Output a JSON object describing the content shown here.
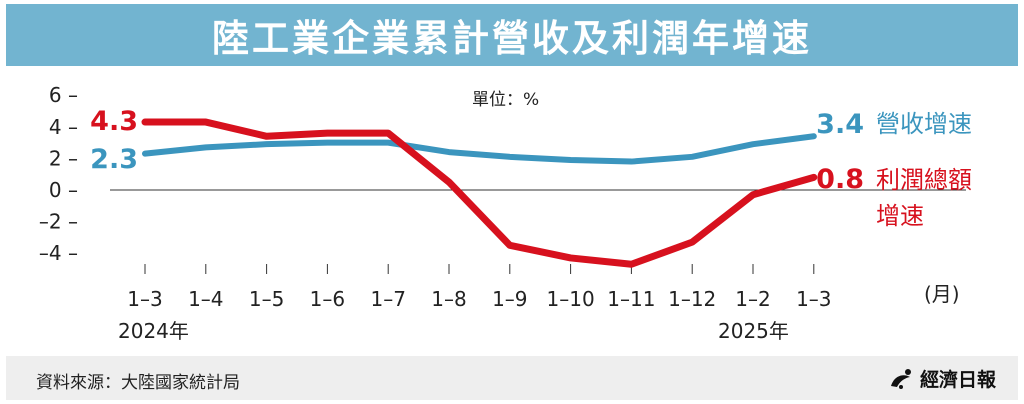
{
  "title": "陸工業企業累計營收及利潤年增速",
  "unit_label": "單位：%",
  "month_suffix": "(月)",
  "year_labels": [
    "2024年",
    "2025年"
  ],
  "source": "資料來源：大陸國家統計局",
  "brand": "經濟日報",
  "colors": {
    "title_bar": "#72b4d0",
    "revenue": "#3b95be",
    "profit": "#d7111e",
    "footer_bg": "#eeeeee"
  },
  "chart_data": {
    "type": "line",
    "categories": [
      "1–3",
      "1–4",
      "1–5",
      "1–6",
      "1–7",
      "1–8",
      "1–9",
      "1–10",
      "1–11",
      "1–12",
      "1–2",
      "1–3"
    ],
    "y_ticks": [
      "6 –",
      "4 –",
      "2 –",
      "0 –",
      "–2 –",
      "–4 –"
    ],
    "y_tick_values": [
      6,
      4,
      2,
      0,
      -2,
      -4
    ],
    "ylim": [
      -5,
      6
    ],
    "series": [
      {
        "key": "revenue",
        "name": "營收增速",
        "values": [
          2.3,
          2.7,
          2.9,
          3.0,
          3.0,
          2.4,
          2.1,
          1.9,
          1.8,
          2.1,
          2.9,
          3.4
        ],
        "first_label": "2.3",
        "last_label": "3.4"
      },
      {
        "key": "profit",
        "name_lines": [
          "利潤總額",
          "增速"
        ],
        "values": [
          4.3,
          4.3,
          3.4,
          3.6,
          3.6,
          0.5,
          -3.5,
          -4.3,
          -4.7,
          -3.3,
          -0.3,
          0.8
        ],
        "first_label": "4.3",
        "last_label": "0.8"
      }
    ]
  }
}
